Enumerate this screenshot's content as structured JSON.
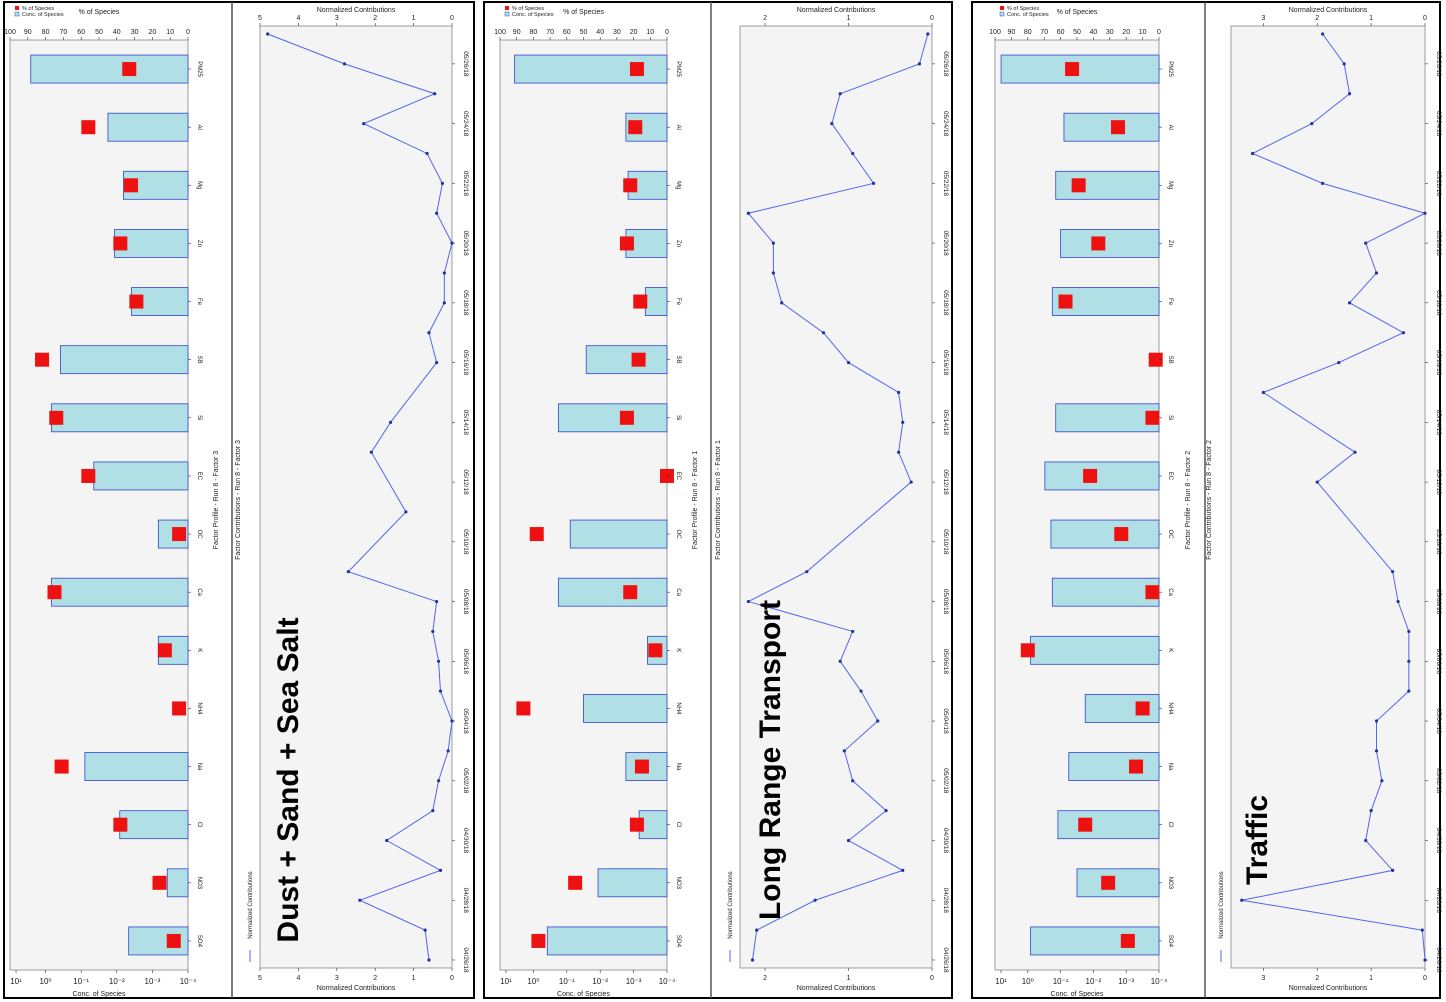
{
  "common": {
    "dates": [
      "04/26/18",
      "04/28/18",
      "04/30/18",
      "05/02/18",
      "05/04/18",
      "05/06/18",
      "05/08/18",
      "05/10/18",
      "05/12/18",
      "05/14/18",
      "05/16/18",
      "05/18/18",
      "05/20/18",
      "05/22/18",
      "05/24/18",
      "05/26/18"
    ],
    "species": [
      "PM25",
      "Al",
      "Mg",
      "Zn",
      "Fe",
      "SB",
      "Si",
      "EC",
      "OC",
      "Ca",
      "K",
      "NH4",
      "Na",
      "Cl",
      "NO3",
      "SO4"
    ],
    "pct_ticks": [
      100,
      90,
      80,
      70,
      60,
      50,
      40,
      30,
      20,
      10,
      0
    ],
    "conc_ticks": [
      "10¹",
      "10⁰",
      "10⁻¹",
      "10⁻²",
      "10⁻³",
      "10⁻⁴"
    ],
    "bar_color": "#b0e0e6",
    "bar_stroke": "#3344cc",
    "marker_color": "#ee1111",
    "line_color": "#5566ee"
  },
  "panels": [
    {
      "profile_title": "Factor Profile - Run 8 - Factor 3",
      "contrib_title": "Factor Contributions - Run 8 - Factor 3",
      "pct_label": "% of Species",
      "legend_pct": "% of Species",
      "legend_conc": "Conc. of Species",
      "conc_label": "Conc. of Species",
      "contrib_axis_label": "Normalized Contributions",
      "contrib_legend": "Normalized Contributions",
      "source_label": "Dust + Sand + Sea Salt",
      "contrib_max": 5,
      "contrib_ticks": [
        5,
        4,
        3,
        2,
        1,
        0
      ],
      "species_labels": [
        "PM25",
        "Al",
        "Mg",
        "Zn",
        "Fe",
        "SB",
        "Si",
        "EC",
        "OC",
        "Ca",
        "K",
        "NH4",
        "Na",
        "Cl",
        "NO3",
        "SO4"
      ]
    },
    {
      "profile_title": "Factor Profile - Run 8 - Factor 1",
      "contrib_title": "Factor Contributions - Run 8 - Factor 1",
      "pct_label": "% of Species",
      "legend_pct": "% of Species",
      "legend_conc": "Conc. of Species",
      "conc_label": "Conc. of Species",
      "contrib_axis_label": "Normalized Contributions",
      "contrib_legend": "Normalized Contributions",
      "source_label": "Long Range Transport",
      "contrib_max": 2.3,
      "contrib_ticks": [
        2,
        1,
        0
      ],
      "species_labels": [
        "PM25",
        "Al",
        "Mg",
        "Zn",
        "Fe",
        "SB",
        "Si",
        "EC",
        "OC",
        "Ca",
        "K",
        "NH4",
        "Na",
        "Cl",
        "NO3",
        "SO4"
      ]
    },
    {
      "profile_title": "Factor Profile - Run 8 - Factor 2",
      "contrib_title": "Factor Contributions - Run 8 - Factor 2",
      "pct_label": "% of Species",
      "legend_pct": "% of Species",
      "legend_conc": "Conc. of Species",
      "conc_label": "Conc. of Species",
      "contrib_axis_label": "Normalized Contributions",
      "contrib_legend": "Normalized Contributions",
      "source_label": "Traffic",
      "contrib_max": 3.6,
      "contrib_ticks": [
        3,
        2,
        1,
        0
      ],
      "species_labels": [
        "PM25",
        "Al",
        "Mg",
        "Zn",
        "Fe",
        "SB",
        "Si",
        "EC",
        "OC",
        "Ca",
        "K",
        "NH4",
        "Na",
        "Cl",
        "NO3",
        "SO4"
      ]
    }
  ],
  "chart_data": [
    {
      "type": "bar",
      "title": "Factor Profile - Run 8 - Factor 3",
      "categories": [
        "PM25",
        "Al",
        "Mg",
        "Zn",
        "Fe",
        "SB",
        "Si",
        "EC",
        "OC",
        "Ca",
        "K",
        "NH4",
        "Na",
        "Cl",
        "NO3",
        "SO4"
      ],
      "series": [
        {
          "name": "Conc. of Species",
          "values": [
            20,
            0.05,
            0.015,
            0.03,
            0.008,
            2,
            4,
            0.15,
            0.001,
            4,
            0.001,
            0,
            0.3,
            0.02,
            0.0005,
            0.01
          ]
        },
        {
          "name": "% of Species",
          "values": [
            33,
            56,
            32,
            38,
            29,
            82,
            74,
            56,
            5,
            75,
            13,
            5,
            71,
            38,
            16,
            8
          ]
        }
      ],
      "yscale": "log",
      "ylim_conc": [
        0.0001,
        100
      ],
      "ylim_pct": [
        0,
        100
      ]
    },
    {
      "type": "line",
      "title": "Factor Contributions - Run 8 - Factor 3",
      "x": [
        "04/26/18",
        "04/27/18",
        "04/28/18",
        "04/29/18",
        "04/30/18",
        "05/01/18",
        "05/02/18",
        "05/03/18",
        "05/04/18",
        "05/05/18",
        "05/06/18",
        "05/07/18",
        "05/08/18",
        "05/09/18",
        "05/11/18",
        "05/13/18",
        "05/14/18",
        "05/16/18",
        "05/17/18",
        "05/18/18",
        "05/19/18",
        "05/20/18",
        "05/21/18",
        "05/22/18",
        "05/23/18",
        "05/24/18",
        "05/25/18",
        "05/26/18",
        "05/27/18"
      ],
      "series": [
        {
          "name": "Normalized Contributions",
          "values": [
            0.6,
            0.7,
            2.4,
            0.3,
            1.7,
            0.5,
            0.35,
            0.1,
            0.0,
            0.3,
            0.35,
            0.5,
            0.4,
            2.7,
            1.2,
            2.1,
            1.6,
            0.4,
            0.6,
            0.2,
            0.2,
            0.0,
            0.4,
            0.25,
            0.65,
            2.3,
            0.45,
            2.8,
            4.8
          ]
        }
      ],
      "ylim": [
        0,
        5
      ],
      "ylabel": "Normalized Contributions"
    },
    {
      "type": "bar",
      "title": "Factor Profile - Run 8 - Factor 1",
      "categories": [
        "PM25",
        "Al",
        "Mg",
        "Zn",
        "Fe",
        "SB",
        "Si",
        "EC",
        "OC",
        "Ca",
        "K",
        "NH4",
        "Na",
        "Cl",
        "NO3",
        "SO4"
      ],
      "series": [
        {
          "name": "Conc. of Species",
          "values": [
            30,
            0.003,
            0.0025,
            0.003,
            0.0006,
            0.08,
            0.8,
            0,
            0.3,
            0.8,
            0.0005,
            0.1,
            0.003,
            0.001,
            0.03,
            2
          ]
        },
        {
          "name": "% of Species",
          "values": [
            18,
            19,
            22,
            24,
            16,
            17,
            24,
            0,
            78,
            22,
            7,
            86,
            15,
            18,
            55,
            77
          ]
        }
      ],
      "yscale": "log",
      "ylim_conc": [
        0.0001,
        100
      ],
      "ylim_pct": [
        0,
        100
      ]
    },
    {
      "type": "line",
      "title": "Factor Contributions - Run 8 - Factor 1",
      "x": [
        "04/26/18",
        "04/27/18",
        "04/28/18",
        "04/29/18",
        "04/30/18",
        "05/01/18",
        "05/02/18",
        "05/03/18",
        "05/04/18",
        "05/05/18",
        "05/06/18",
        "05/07/18",
        "05/08/18",
        "05/09/18",
        "05/12/18",
        "05/13/18",
        "05/14/18",
        "05/15/18",
        "05/16/18",
        "05/17/18",
        "05/18/18",
        "05/19/18",
        "05/20/18",
        "05/21/18",
        "05/22/18",
        "05/23/18",
        "05/24/18",
        "05/25/18",
        "05/26/18",
        "05/27/18"
      ],
      "series": [
        {
          "name": "Normalized Contributions",
          "values": [
            2.15,
            2.1,
            1.4,
            0.35,
            1.0,
            0.55,
            0.95,
            1.05,
            0.65,
            0.85,
            1.1,
            0.95,
            2.2,
            1.5,
            0.25,
            0.4,
            0.35,
            0.4,
            1.0,
            1.3,
            1.8,
            1.9,
            1.9,
            2.2,
            0.7,
            0.95,
            1.2,
            1.1,
            0.15,
            0.05
          ]
        }
      ],
      "ylim": [
        0,
        2.3
      ],
      "ylabel": "Normalized Contributions"
    },
    {
      "type": "bar",
      "title": "Factor Profile - Run 8 - Factor 2",
      "categories": [
        "PM25",
        "Al",
        "Mg",
        "Zn",
        "Fe",
        "SB",
        "Si",
        "EC",
        "OC",
        "Ca",
        "K",
        "NH4",
        "Na",
        "Cl",
        "NO3",
        "SO4"
      ],
      "series": [
        {
          "name": "Conc. of Species",
          "values": [
            60,
            0.3,
            0.6,
            0.4,
            0.8,
            0,
            0.6,
            1.5,
            0.9,
            0.8,
            5,
            0.05,
            0.2,
            0.5,
            0.1,
            5
          ]
        },
        {
          "name": "% of Species",
          "values": [
            53,
            25,
            49,
            37,
            57,
            2,
            4,
            42,
            23,
            4,
            80,
            10,
            14,
            45,
            31,
            19
          ]
        }
      ],
      "yscale": "log",
      "ylim_conc": [
        0.0001,
        100
      ],
      "ylim_pct": [
        0,
        100
      ]
    },
    {
      "type": "line",
      "title": "Factor Contributions - Run 8 - Factor 2",
      "x": [
        "04/26/18",
        "04/27/18",
        "04/28/18",
        "04/29/18",
        "04/30/18",
        "05/01/18",
        "05/02/18",
        "05/03/18",
        "05/04/18",
        "05/05/18",
        "05/06/18",
        "05/07/18",
        "05/08/18",
        "05/09/18",
        "05/12/18",
        "05/13/18",
        "05/15/18",
        "05/16/18",
        "05/17/18",
        "05/18/18",
        "05/19/18",
        "05/20/18",
        "05/21/18",
        "05/22/18",
        "05/23/18",
        "05/24/18",
        "05/25/18",
        "05/26/18",
        "05/27/18"
      ],
      "series": [
        {
          "name": "Normalized Contributions",
          "values": [
            0.0,
            0.05,
            3.4,
            0.6,
            1.1,
            1.0,
            0.8,
            0.9,
            0.9,
            0.3,
            0.3,
            0.3,
            0.5,
            0.6,
            2.0,
            1.3,
            3.0,
            1.6,
            0.4,
            1.4,
            0.9,
            1.1,
            0.0,
            1.9,
            3.2,
            2.1,
            1.4,
            1.5,
            1.9
          ]
        }
      ],
      "ylim": [
        0,
        3.6
      ],
      "ylabel": "Normalized Contributions"
    }
  ]
}
